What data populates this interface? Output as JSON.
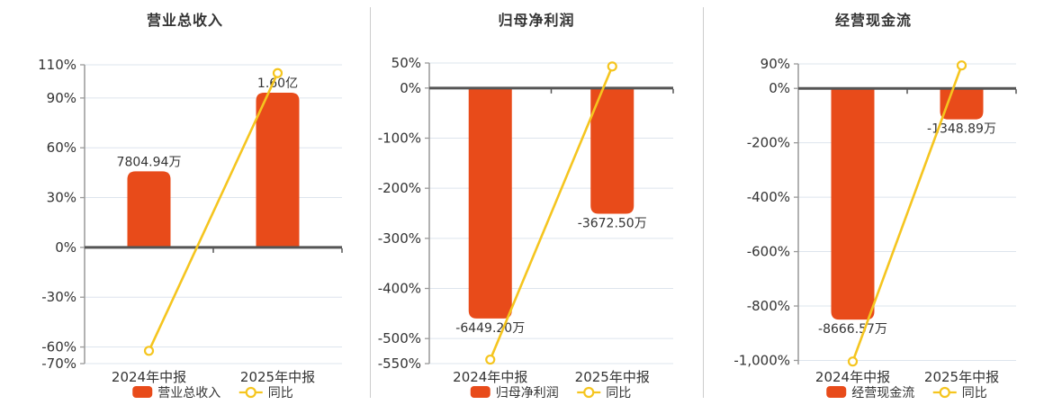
{
  "colors": {
    "bar": "#e84b1a",
    "line": "#f5c51f",
    "grid": "#dde4ed",
    "zero_axis": "#555555",
    "axis_line": "#999999",
    "text": "#333333",
    "marker_fill": "#ffffff",
    "separator": "#cccccc",
    "background": "#ffffff"
  },
  "chart_data": [
    {
      "type": "bar+line",
      "title": "营业总收入",
      "categories": [
        "2024年中报",
        "2025年中报"
      ],
      "bar_series": {
        "name": "营业总收入",
        "unit": "万元",
        "values": [
          7804.94,
          16000
        ],
        "value_labels": [
          "7804.94万",
          "1.60亿"
        ],
        "values_pct_axis": [
          45.8,
          93.2
        ]
      },
      "line_series": {
        "name": "同比",
        "values_pct": [
          -62.3,
          105.0
        ]
      },
      "ylim": [
        -70,
        110
      ],
      "yticks": [
        {
          "value": 110,
          "label": "110%"
        },
        {
          "value": 90,
          "label": "90%"
        },
        {
          "value": 60,
          "label": "60%"
        },
        {
          "value": 30,
          "label": "30%"
        },
        {
          "value": 0,
          "label": "0%"
        },
        {
          "value": -30,
          "label": "-30%"
        },
        {
          "value": -60,
          "label": "-60%"
        },
        {
          "value": -70,
          "label": "-70%"
        }
      ],
      "grid": true,
      "legend_position": "bottom"
    },
    {
      "type": "bar+line",
      "title": "归母净利润",
      "categories": [
        "2024年中报",
        "2025年中报"
      ],
      "bar_series": {
        "name": "归母净利润",
        "unit": "万元",
        "values": [
          -6449.2,
          -3672.5
        ],
        "value_labels": [
          "-6449.20万",
          "-3672.50万"
        ],
        "values_pct_axis": [
          -460,
          -251
        ]
      },
      "line_series": {
        "name": "同比",
        "values_pct": [
          -542,
          43.1
        ]
      },
      "ylim": [
        -550,
        50
      ],
      "yticks": [
        {
          "value": 50,
          "label": "50%"
        },
        {
          "value": 0,
          "label": "0%"
        },
        {
          "value": -100,
          "label": "-100%"
        },
        {
          "value": -200,
          "label": "-200%"
        },
        {
          "value": -300,
          "label": "-300%"
        },
        {
          "value": -400,
          "label": "-400%"
        },
        {
          "value": -500,
          "label": "-500%"
        },
        {
          "value": -550,
          "label": "-550%"
        }
      ],
      "grid": true,
      "legend_position": "bottom"
    },
    {
      "type": "bar+line",
      "title": "经营现金流",
      "categories": [
        "2024年中报",
        "2025年中报"
      ],
      "bar_series": {
        "name": "经营现金流",
        "unit": "万元",
        "values": [
          -8666.57,
          -1348.89
        ],
        "value_labels": [
          "-8666.57万",
          "-1348.89万"
        ],
        "values_pct_axis": [
          -850,
          -114
        ]
      },
      "line_series": {
        "name": "同比",
        "values_pct": [
          -1004,
          84.4
        ]
      },
      "ylim": [
        -1015,
        90
      ],
      "yticks": [
        {
          "value": 90,
          "label": "90%"
        },
        {
          "value": 0,
          "label": "0%"
        },
        {
          "value": -200,
          "label": "-200%"
        },
        {
          "value": -400,
          "label": "-400%"
        },
        {
          "value": -600,
          "label": "-600%"
        },
        {
          "value": -800,
          "label": "-800%"
        },
        {
          "value": -1000,
          "label": "-1,000%"
        }
      ],
      "grid": true,
      "legend_position": "bottom"
    }
  ]
}
